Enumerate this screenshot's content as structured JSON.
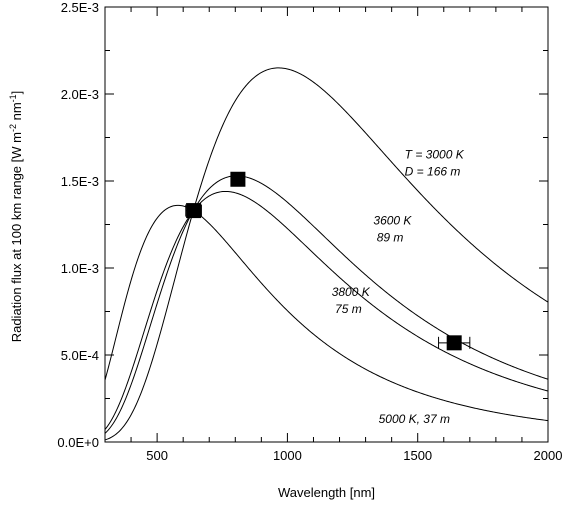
{
  "chart_data": {
    "type": "line",
    "title": "",
    "xlabel": "Wavelength [nm]",
    "ylabel_html": "Radiation flux at 100 km range [W m<tspan baseline-shift='super' font-size='9'>-2</tspan> nm<tspan baseline-shift='super' font-size='9'>-1</tspan>]",
    "ylabel_parts": [
      "Radiation flux at 100 km range [W m",
      "-2",
      " nm",
      "-1",
      "]"
    ],
    "xlim": [
      300,
      2000
    ],
    "ylim": [
      0,
      0.0025
    ],
    "xticks": [
      500,
      1000,
      1500,
      2000
    ],
    "xtick_labels": [
      "500",
      "1000",
      "1500",
      "2000"
    ],
    "yticks": [
      0,
      0.0005,
      0.001,
      0.0015,
      0.002,
      0.0025
    ],
    "ytick_labels": [
      "0.0E+0",
      "5.0E-4",
      "1.0E-3",
      "1.5E-3",
      "2.0E-3",
      "2.5E-3"
    ],
    "series": [
      {
        "temperature_K": 3000,
        "peak_flux": 0.00215,
        "peak_wavelength_nm": 966
      },
      {
        "temperature_K": 3600,
        "peak_flux": 0.00153,
        "peak_wavelength_nm": 805
      },
      {
        "temperature_K": 3800,
        "peak_flux": 0.00144,
        "peak_wavelength_nm": 763
      },
      {
        "temperature_K": 5000,
        "peak_flux": 0.00136,
        "peak_wavelength_nm": 580
      }
    ],
    "measurements": [
      {
        "x": 640,
        "y": 0.00133,
        "xerr": 30
      },
      {
        "x": 810,
        "y": 0.00151,
        "xerr": 25
      },
      {
        "x": 1640,
        "y": 0.00057,
        "xerr": 60
      }
    ],
    "annotations": [
      {
        "lines": [
          "T = 3000 K",
          "D = 166 m"
        ],
        "x": 1450,
        "y": 0.00163
      },
      {
        "lines": [
          "3600 K",
          " 89 m"
        ],
        "x": 1330,
        "y": 0.00125
      },
      {
        "lines": [
          "3800 K",
          " 75 m"
        ],
        "x": 1170,
        "y": 0.00084
      },
      {
        "lines": [
          "5000 K, 37 m"
        ],
        "x": 1350,
        "y": 0.00011
      }
    ],
    "grid": false,
    "colors": {
      "line": "#000000",
      "marker": "#000000",
      "background": "#ffffff"
    }
  }
}
